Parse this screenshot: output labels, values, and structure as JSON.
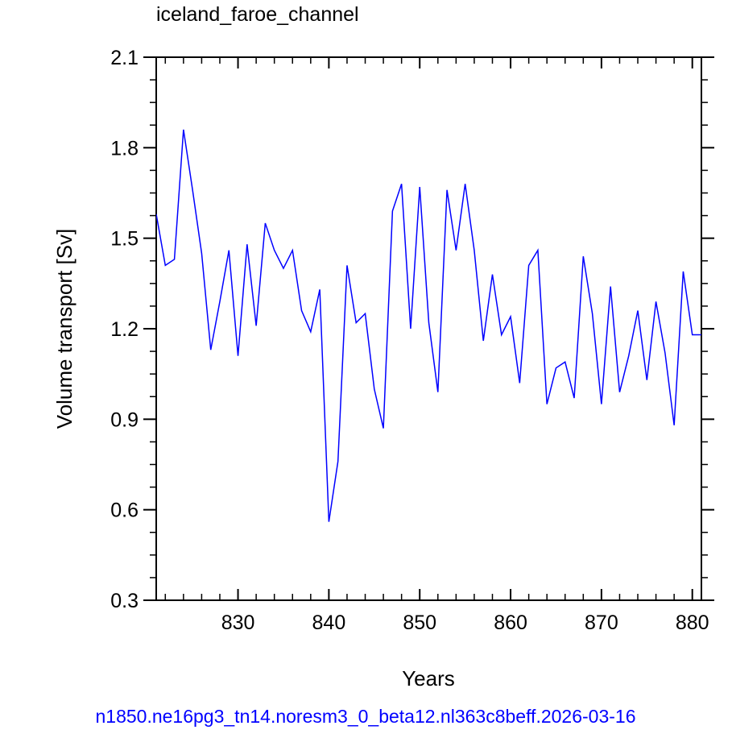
{
  "chart_data": {
    "type": "line",
    "title": "iceland_faroe_channel",
    "xlabel": "Years",
    "ylabel": "Volume transport [Sv]",
    "footer": "n1850.ne16pg3_tn14.noresm3_0_beta12.nl363c8beff.2026-03-16",
    "xlim": [
      821,
      881
    ],
    "ylim": [
      0.3,
      2.1
    ],
    "xticks": [
      830,
      840,
      850,
      860,
      870,
      880
    ],
    "xtick_labels": [
      "830",
      "840",
      "850",
      "860",
      "870",
      "880"
    ],
    "yticks": [
      0.3,
      0.6,
      0.9,
      1.2,
      1.5,
      1.8,
      2.1
    ],
    "ytick_labels": [
      "0.3",
      "0.6",
      "0.9",
      "1.2",
      "1.5",
      "1.8",
      "2.1"
    ],
    "line_color": "#0000ff",
    "grid": false,
    "series": [
      {
        "x": [
          821,
          822,
          823,
          824,
          825,
          826,
          827,
          828,
          829,
          830,
          831,
          832,
          833,
          834,
          835,
          836,
          837,
          838,
          839,
          840,
          841,
          842,
          843,
          844,
          845,
          846,
          847,
          848,
          849,
          850,
          851,
          852,
          853,
          854,
          855,
          856,
          857,
          858,
          859,
          860,
          861,
          862,
          863,
          864,
          865,
          866,
          867,
          868,
          869,
          870,
          871,
          872,
          873,
          874,
          875,
          876,
          877,
          878,
          879,
          880,
          881
        ],
        "y": [
          1.58,
          1.41,
          1.43,
          1.86,
          1.66,
          1.45,
          1.13,
          1.29,
          1.46,
          1.11,
          1.48,
          1.21,
          1.55,
          1.46,
          1.4,
          1.46,
          1.26,
          1.19,
          1.33,
          0.56,
          0.76,
          1.41,
          1.22,
          1.25,
          1.0,
          0.87,
          1.59,
          1.68,
          1.2,
          1.67,
          1.22,
          0.99,
          1.66,
          1.46,
          1.68,
          1.46,
          1.16,
          1.38,
          1.18,
          1.24,
          1.02,
          1.41,
          1.46,
          0.95,
          1.07,
          1.09,
          0.97,
          1.44,
          1.25,
          0.95,
          1.34,
          0.99,
          1.11,
          1.26,
          1.03,
          1.29,
          1.12,
          0.88,
          1.39,
          1.18,
          1.18
        ]
      }
    ]
  }
}
